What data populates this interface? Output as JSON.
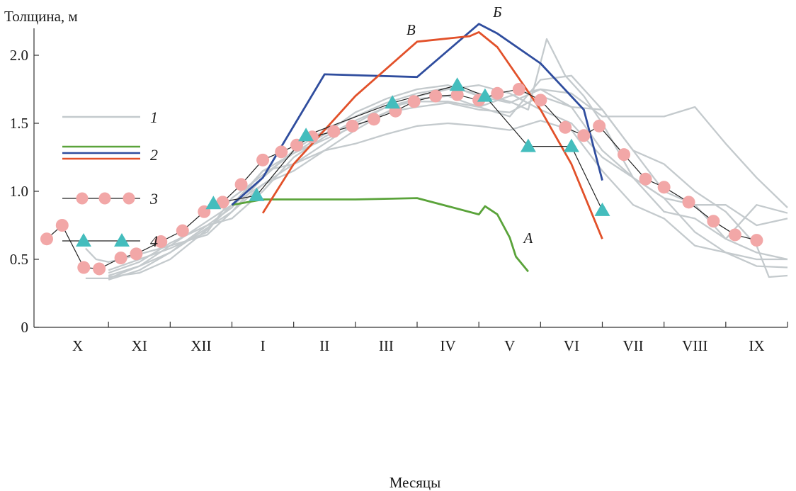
{
  "chart_data": {
    "type": "line",
    "ylabel": "Толщина, м",
    "xlabel": "Месяцы",
    "ylim": [
      0,
      2.25
    ],
    "xlim": [
      0,
      12
    ],
    "y_ticks": [
      0,
      0.5,
      1.0,
      1.5,
      2.0
    ],
    "y_tick_labels": [
      "0",
      "0.5",
      "1.0",
      "1.5",
      "2.0"
    ],
    "month_labels": [
      "X",
      "XI",
      "XII",
      "I",
      "II",
      "III",
      "IV",
      "V",
      "VI",
      "VII",
      "VIII",
      "IX"
    ],
    "legend_placement": "top-left",
    "colors": {
      "series1": "#c4cacd",
      "green": "#5aa33a",
      "blue": "#2f4d9e",
      "red": "#e2512a",
      "pink": "#f2a7a7",
      "cyan": "#44bdbd",
      "connector": "#222222"
    },
    "legend": [
      {
        "key": "series1",
        "label": "1",
        "kind": "line",
        "colors": [
          "#c4cacd"
        ]
      },
      {
        "key": "series2",
        "label": "2",
        "kind": "double-line",
        "colors": [
          "#5aa33a",
          "#2f4d9e",
          "#e2512a"
        ]
      },
      {
        "key": "series3",
        "label": "3",
        "kind": "circle-line",
        "colors": [
          "#f2a7a7"
        ]
      },
      {
        "key": "series4",
        "label": "4",
        "kind": "triangle-line",
        "colors": [
          "#44bdbd"
        ]
      }
    ],
    "series": [
      {
        "key": "series1",
        "style": "grey",
        "lines": [
          [
            [
              0.63,
              0.58
            ],
            [
              0.8,
              0.5
            ],
            [
              1.0,
              0.48
            ],
            [
              1.2,
              0.5
            ],
            [
              1.6,
              0.55
            ],
            [
              2.0,
              0.6
            ],
            [
              2.6,
              0.78
            ],
            [
              3.0,
              0.9
            ],
            [
              3.5,
              1.05
            ],
            [
              4.0,
              1.15
            ],
            [
              4.5,
              1.3
            ],
            [
              5.0,
              1.45
            ],
            [
              5.5,
              1.58
            ],
            [
              6.0,
              1.7
            ],
            [
              6.5,
              1.75
            ],
            [
              7.0,
              1.78
            ],
            [
              7.5,
              1.72
            ],
            [
              8.0,
              1.6
            ],
            [
              8.5,
              1.5
            ],
            [
              9.0,
              1.25
            ],
            [
              9.5,
              1.1
            ],
            [
              10.0,
              0.95
            ],
            [
              10.5,
              0.7
            ],
            [
              11.0,
              0.55
            ],
            [
              11.5,
              0.45
            ],
            [
              12.0,
              0.44
            ]
          ],
          [
            [
              0.63,
              0.36
            ],
            [
              1.0,
              0.36
            ],
            [
              1.5,
              0.45
            ],
            [
              2.0,
              0.55
            ],
            [
              2.5,
              0.7
            ],
            [
              3.0,
              0.85
            ],
            [
              3.5,
              1.1
            ],
            [
              4.0,
              1.3
            ],
            [
              4.5,
              1.45
            ],
            [
              5.0,
              1.55
            ],
            [
              5.5,
              1.65
            ],
            [
              6.0,
              1.72
            ],
            [
              6.5,
              1.76
            ],
            [
              7.0,
              1.72
            ],
            [
              7.5,
              1.66
            ],
            [
              7.8,
              1.6
            ],
            [
              8.1,
              2.12
            ],
            [
              8.4,
              1.85
            ],
            [
              8.7,
              1.7
            ],
            [
              9.0,
              1.5
            ],
            [
              9.5,
              1.1
            ],
            [
              10.0,
              0.95
            ],
            [
              10.5,
              0.9
            ],
            [
              11.0,
              0.9
            ],
            [
              11.5,
              0.75
            ],
            [
              12.0,
              0.8
            ]
          ],
          [
            [
              1.0,
              0.37
            ],
            [
              1.5,
              0.4
            ],
            [
              2.0,
              0.5
            ],
            [
              2.6,
              0.72
            ],
            [
              3.0,
              0.9
            ],
            [
              3.5,
              1.15
            ],
            [
              4.0,
              1.2
            ],
            [
              4.5,
              1.35
            ],
            [
              5.0,
              1.5
            ],
            [
              5.5,
              1.62
            ],
            [
              6.0,
              1.68
            ],
            [
              6.5,
              1.7
            ],
            [
              7.0,
              1.62
            ],
            [
              7.5,
              1.55
            ],
            [
              8.0,
              1.82
            ],
            [
              8.5,
              1.85
            ],
            [
              9.0,
              1.6
            ],
            [
              9.5,
              1.3
            ],
            [
              10.0,
              1.2
            ],
            [
              10.5,
              1.0
            ],
            [
              11.0,
              0.85
            ],
            [
              11.5,
              0.6
            ],
            [
              11.7,
              0.37
            ],
            [
              12.0,
              0.38
            ]
          ],
          [
            [
              1.0,
              0.35
            ],
            [
              1.5,
              0.42
            ],
            [
              2.0,
              0.55
            ],
            [
              2.6,
              0.75
            ],
            [
              3.0,
              0.8
            ],
            [
              3.5,
              1.0
            ],
            [
              4.0,
              1.25
            ],
            [
              4.5,
              1.4
            ],
            [
              5.0,
              1.52
            ],
            [
              5.5,
              1.62
            ],
            [
              6.0,
              1.66
            ],
            [
              6.5,
              1.66
            ],
            [
              7.0,
              1.62
            ],
            [
              7.5,
              1.7
            ],
            [
              8.0,
              1.75
            ],
            [
              8.5,
              1.62
            ],
            [
              9.0,
              1.3
            ],
            [
              9.5,
              1.1
            ],
            [
              10.0,
              0.85
            ],
            [
              10.5,
              0.8
            ],
            [
              11.0,
              0.65
            ],
            [
              11.5,
              0.9
            ],
            [
              12.0,
              0.84
            ]
          ],
          [
            [
              1.0,
              0.38
            ],
            [
              1.5,
              0.45
            ],
            [
              2.0,
              0.6
            ],
            [
              2.6,
              0.68
            ],
            [
              3.0,
              0.85
            ],
            [
              3.5,
              1.05
            ],
            [
              4.0,
              1.2
            ],
            [
              4.5,
              1.3
            ],
            [
              5.0,
              1.35
            ],
            [
              5.5,
              1.42
            ],
            [
              6.0,
              1.48
            ],
            [
              6.5,
              1.5
            ],
            [
              7.0,
              1.48
            ],
            [
              7.5,
              1.45
            ],
            [
              8.0,
              1.52
            ],
            [
              8.5,
              1.45
            ],
            [
              9.0,
              1.15
            ],
            [
              9.5,
              0.9
            ],
            [
              10.0,
              0.8
            ],
            [
              10.5,
              0.6
            ],
            [
              11.0,
              0.55
            ],
            [
              11.5,
              0.5
            ],
            [
              12.0,
              0.5
            ]
          ],
          [
            [
              1.0,
              0.4
            ],
            [
              1.5,
              0.48
            ],
            [
              2.0,
              0.62
            ],
            [
              2.6,
              0.75
            ],
            [
              3.0,
              0.88
            ],
            [
              3.5,
              1.15
            ],
            [
              4.0,
              1.28
            ],
            [
              4.5,
              1.42
            ],
            [
              5.0,
              1.58
            ],
            [
              5.5,
              1.68
            ],
            [
              6.0,
              1.75
            ],
            [
              6.5,
              1.78
            ],
            [
              7.0,
              1.7
            ],
            [
              7.5,
              1.65
            ],
            [
              8.0,
              1.75
            ],
            [
              8.5,
              1.72
            ],
            [
              9.0,
              1.55
            ],
            [
              9.5,
              1.55
            ],
            [
              10.0,
              1.55
            ],
            [
              10.5,
              1.62
            ],
            [
              11.0,
              1.35
            ],
            [
              11.5,
              1.1
            ],
            [
              12.0,
              0.88
            ]
          ],
          [
            [
              1.0,
              0.42
            ],
            [
              1.5,
              0.5
            ],
            [
              2.0,
              0.58
            ],
            [
              2.6,
              0.7
            ],
            [
              3.0,
              0.95
            ],
            [
              3.5,
              1.12
            ],
            [
              4.0,
              1.28
            ],
            [
              4.5,
              1.38
            ],
            [
              5.0,
              1.48
            ],
            [
              5.5,
              1.58
            ],
            [
              6.0,
              1.62
            ],
            [
              6.5,
              1.65
            ],
            [
              7.0,
              1.6
            ],
            [
              7.5,
              1.58
            ],
            [
              8.0,
              1.7
            ],
            [
              8.5,
              1.62
            ],
            [
              9.0,
              1.6
            ],
            [
              9.5,
              1.3
            ],
            [
              10.0,
              1.0
            ],
            [
              10.5,
              0.9
            ],
            [
              11.0,
              0.65
            ],
            [
              11.5,
              0.55
            ],
            [
              12.0,
              0.5
            ]
          ]
        ]
      },
      {
        "key": "series2",
        "style": "double",
        "curves": [
          {
            "name": "A",
            "color": "#5aa33a",
            "label_pos": [
              7.8,
              0.62
            ],
            "points": [
              [
                3.0,
                0.9
              ],
              [
                3.5,
                0.94
              ],
              [
                5.0,
                0.94
              ],
              [
                6.0,
                0.95
              ],
              [
                7.0,
                0.83
              ],
              [
                7.1,
                0.89
              ],
              [
                7.3,
                0.83
              ],
              [
                7.5,
                0.66
              ],
              [
                7.6,
                0.52
              ],
              [
                7.8,
                0.41
              ]
            ]
          },
          {
            "name": "Б",
            "color": "#2f4d9e",
            "label_pos": [
              7.3,
              2.28
            ],
            "points": [
              [
                3.0,
                0.9
              ],
              [
                3.5,
                1.1
              ],
              [
                4.5,
                1.86
              ],
              [
                6.0,
                1.84
              ],
              [
                7.0,
                2.23
              ],
              [
                7.3,
                2.16
              ],
              [
                8.0,
                1.94
              ],
              [
                8.7,
                1.6
              ],
              [
                9.0,
                1.08
              ]
            ]
          },
          {
            "name": "В",
            "color": "#e2512a",
            "label_pos": [
              5.9,
              2.15
            ],
            "points": [
              [
                3.5,
                0.84
              ],
              [
                4.0,
                1.2
              ],
              [
                4.5,
                1.45
              ],
              [
                5.0,
                1.7
              ],
              [
                6.0,
                2.1
              ],
              [
                6.85,
                2.14
              ],
              [
                7.0,
                2.17
              ],
              [
                7.3,
                2.06
              ],
              [
                8.0,
                1.6
              ],
              [
                8.5,
                1.2
              ],
              [
                9.0,
                0.65
              ]
            ]
          }
        ]
      },
      {
        "key": "series3",
        "style": "circles",
        "points": [
          [
            0.0,
            0.65
          ],
          [
            0.25,
            0.75
          ],
          [
            0.6,
            0.44
          ],
          [
            0.85,
            0.43
          ],
          [
            1.2,
            0.51
          ],
          [
            1.45,
            0.54
          ],
          [
            1.85,
            0.63
          ],
          [
            2.2,
            0.71
          ],
          [
            2.55,
            0.85
          ],
          [
            2.85,
            0.92
          ],
          [
            3.15,
            1.05
          ],
          [
            3.5,
            1.23
          ],
          [
            3.8,
            1.29
          ],
          [
            4.05,
            1.34
          ],
          [
            4.3,
            1.4
          ],
          [
            4.65,
            1.44
          ],
          [
            4.95,
            1.48
          ],
          [
            5.3,
            1.53
          ],
          [
            5.65,
            1.59
          ],
          [
            5.95,
            1.66
          ],
          [
            6.3,
            1.7
          ],
          [
            6.65,
            1.71
          ],
          [
            7.0,
            1.67
          ],
          [
            7.3,
            1.72
          ],
          [
            7.65,
            1.75
          ],
          [
            8.0,
            1.67
          ],
          [
            8.4,
            1.47
          ],
          [
            8.7,
            1.41
          ],
          [
            8.95,
            1.48
          ],
          [
            9.35,
            1.27
          ],
          [
            9.7,
            1.09
          ],
          [
            10.0,
            1.03
          ],
          [
            10.4,
            0.92
          ],
          [
            10.8,
            0.78
          ],
          [
            11.15,
            0.68
          ],
          [
            11.5,
            0.64
          ]
        ]
      },
      {
        "key": "series4",
        "style": "triangles",
        "points": [
          [
            2.7,
            0.91
          ],
          [
            3.4,
            0.97
          ],
          [
            4.2,
            1.41
          ],
          [
            5.6,
            1.65
          ],
          [
            6.65,
            1.78
          ],
          [
            7.1,
            1.7
          ],
          [
            7.8,
            1.33
          ],
          [
            8.5,
            1.33
          ],
          [
            9.0,
            0.86
          ]
        ]
      }
    ]
  }
}
